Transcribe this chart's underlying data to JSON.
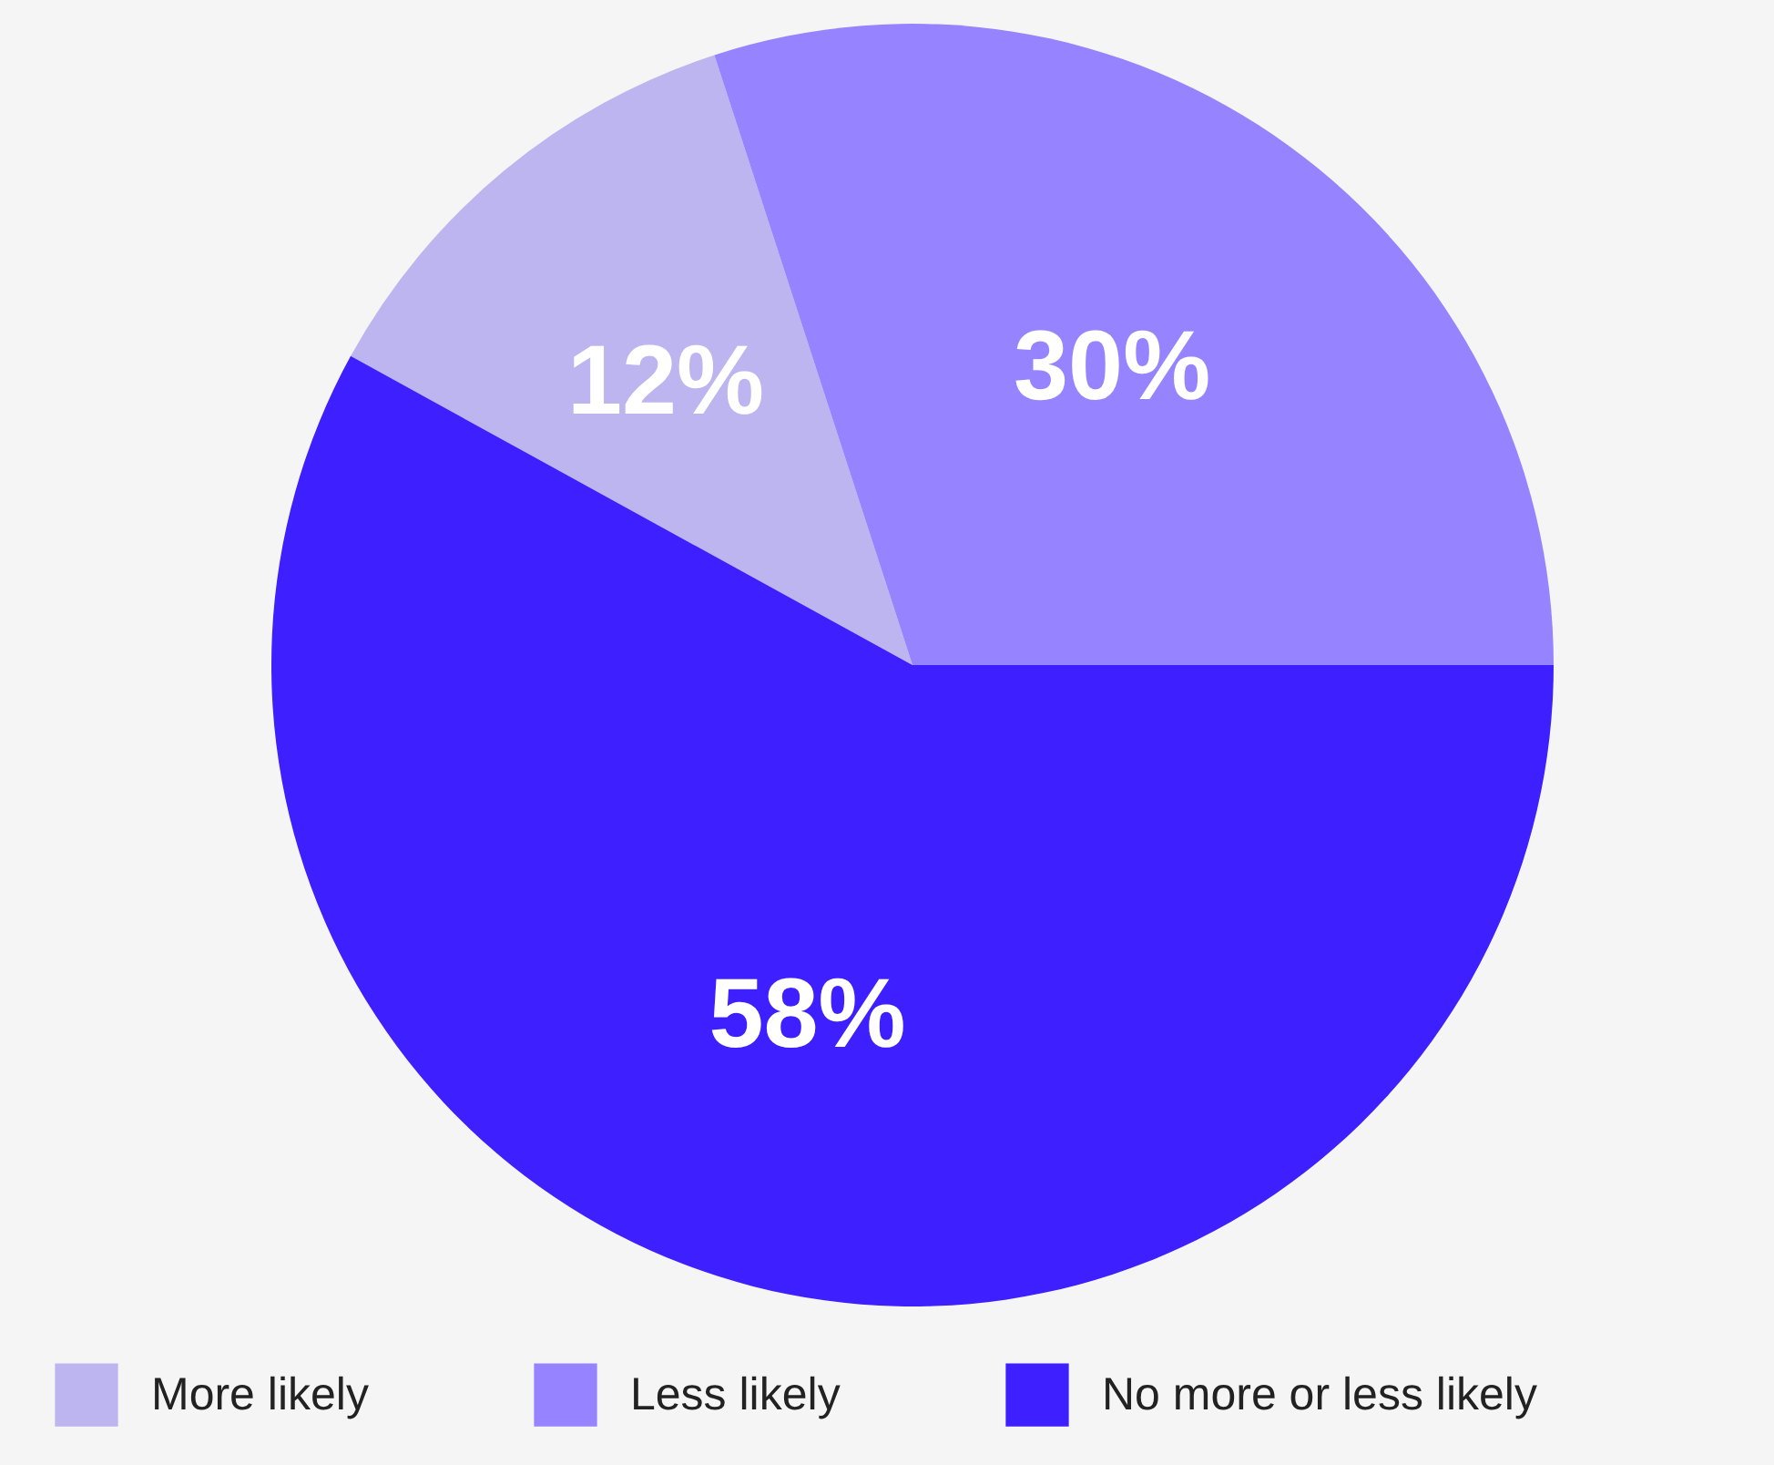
{
  "chart_data": {
    "type": "pie",
    "categories": [
      "More likely",
      "Less likely",
      "No more or less likely"
    ],
    "values": [
      12,
      30,
      58
    ],
    "colors": [
      "#bdb5f0",
      "#9583ff",
      "#3d1fff"
    ],
    "value_labels": [
      "12%",
      "30%",
      "58%"
    ],
    "legend": "bottom"
  }
}
